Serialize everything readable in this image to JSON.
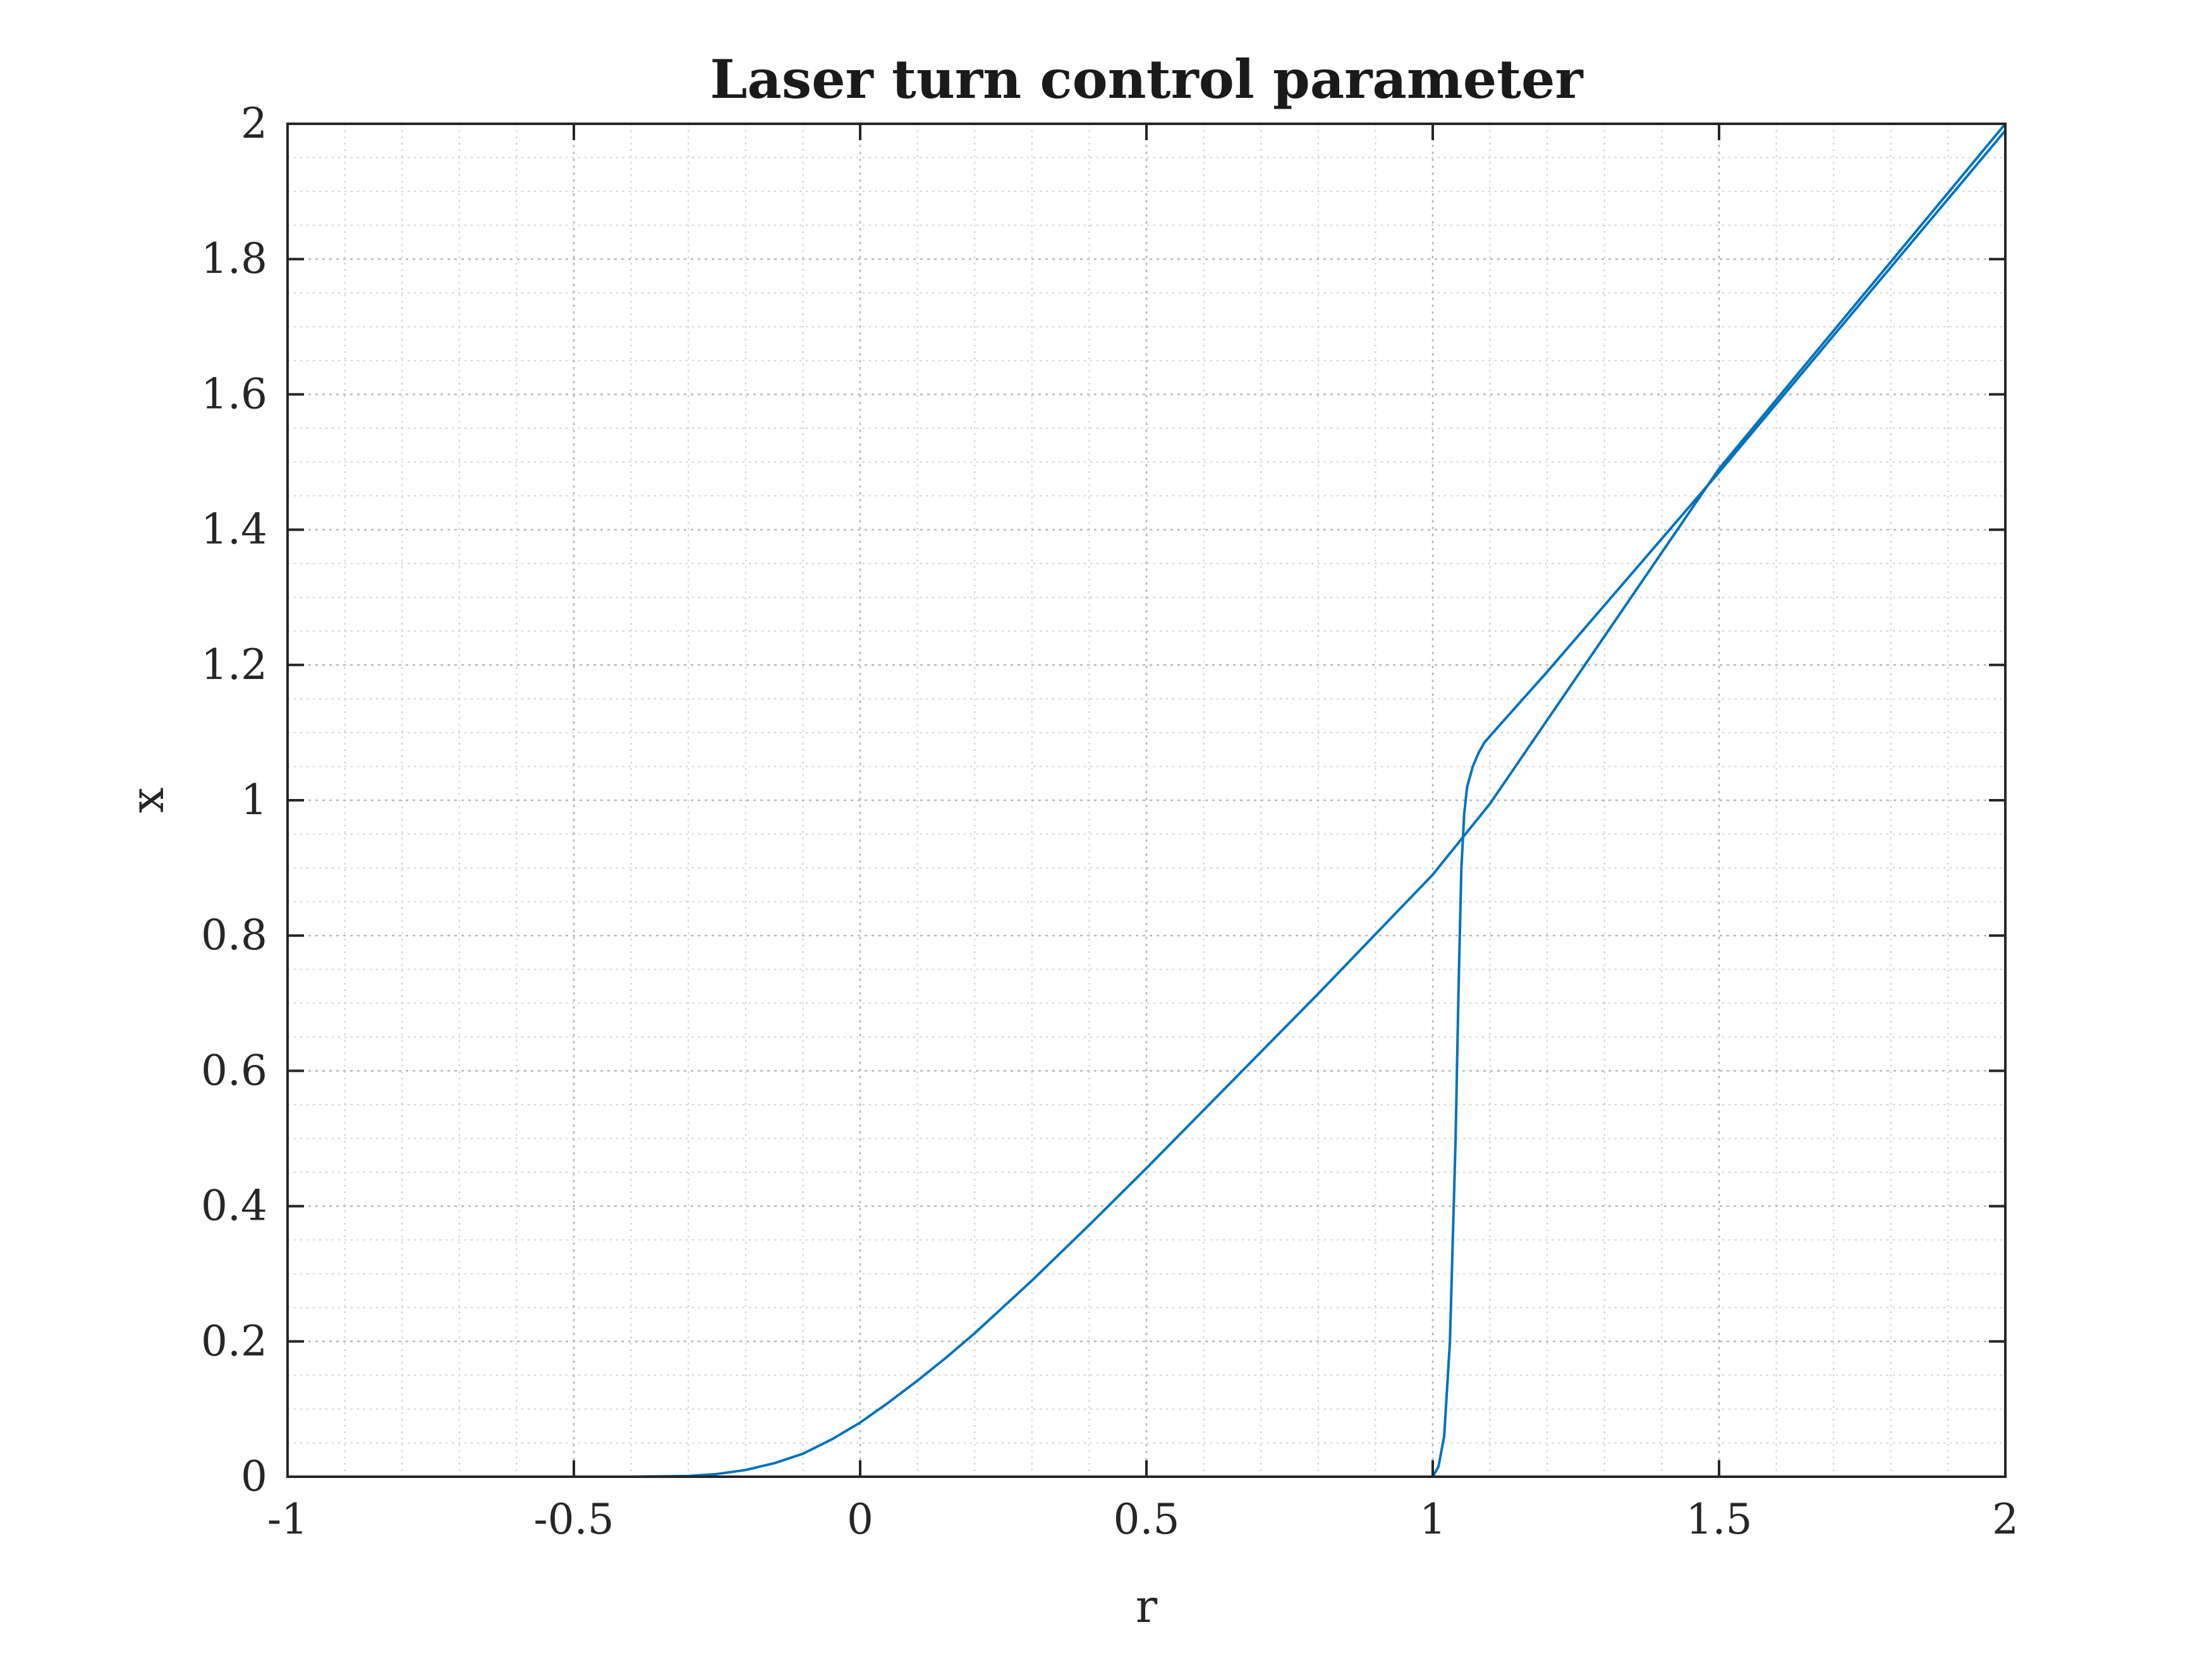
{
  "chart_data": {
    "type": "line",
    "title": "Laser turn control parameter",
    "xlabel": "r",
    "ylabel": "x",
    "xlim": [
      -1,
      2
    ],
    "ylim": [
      0,
      2
    ],
    "xticks": [
      "-1",
      "-0.5",
      "0",
      "0.5",
      "1",
      "1.5",
      "2"
    ],
    "yticks": [
      "0",
      "0.2",
      "0.4",
      "0.6",
      "0.8",
      "1",
      "1.2",
      "1.4",
      "1.6",
      "1.8",
      "2"
    ],
    "grid": true,
    "minor_grid": true,
    "line_color": "#0072bd",
    "series": [
      {
        "x": [
          -1,
          -0.6,
          -0.4,
          -0.3,
          -0.25,
          -0.2,
          -0.15,
          -0.1,
          -0.05,
          0,
          0.05,
          0.1,
          0.15,
          0.2,
          0.3,
          0.4,
          0.5,
          0.6,
          0.8,
          1.0,
          1.1,
          1.5,
          2
        ],
        "values": [
          0,
          0,
          0,
          0.001,
          0.004,
          0.01,
          0.02,
          0.034,
          0.055,
          0.08,
          0.11,
          0.142,
          0.176,
          0.212,
          0.29,
          0.372,
          0.456,
          0.542,
          0.714,
          0.89,
          0.995,
          1.49,
          2
        ]
      },
      {
        "x": [
          -1,
          1.0,
          1.01,
          1.02,
          1.03,
          1.04,
          1.045,
          1.05,
          1.055,
          1.06,
          1.07,
          1.08,
          1.09,
          1.1,
          1.2,
          1.5,
          2
        ],
        "values": [
          0,
          0,
          0.015,
          0.06,
          0.2,
          0.5,
          0.72,
          0.9,
          0.98,
          1.02,
          1.05,
          1.07,
          1.085,
          1.095,
          1.19,
          1.485,
          1.99
        ]
      }
    ]
  }
}
